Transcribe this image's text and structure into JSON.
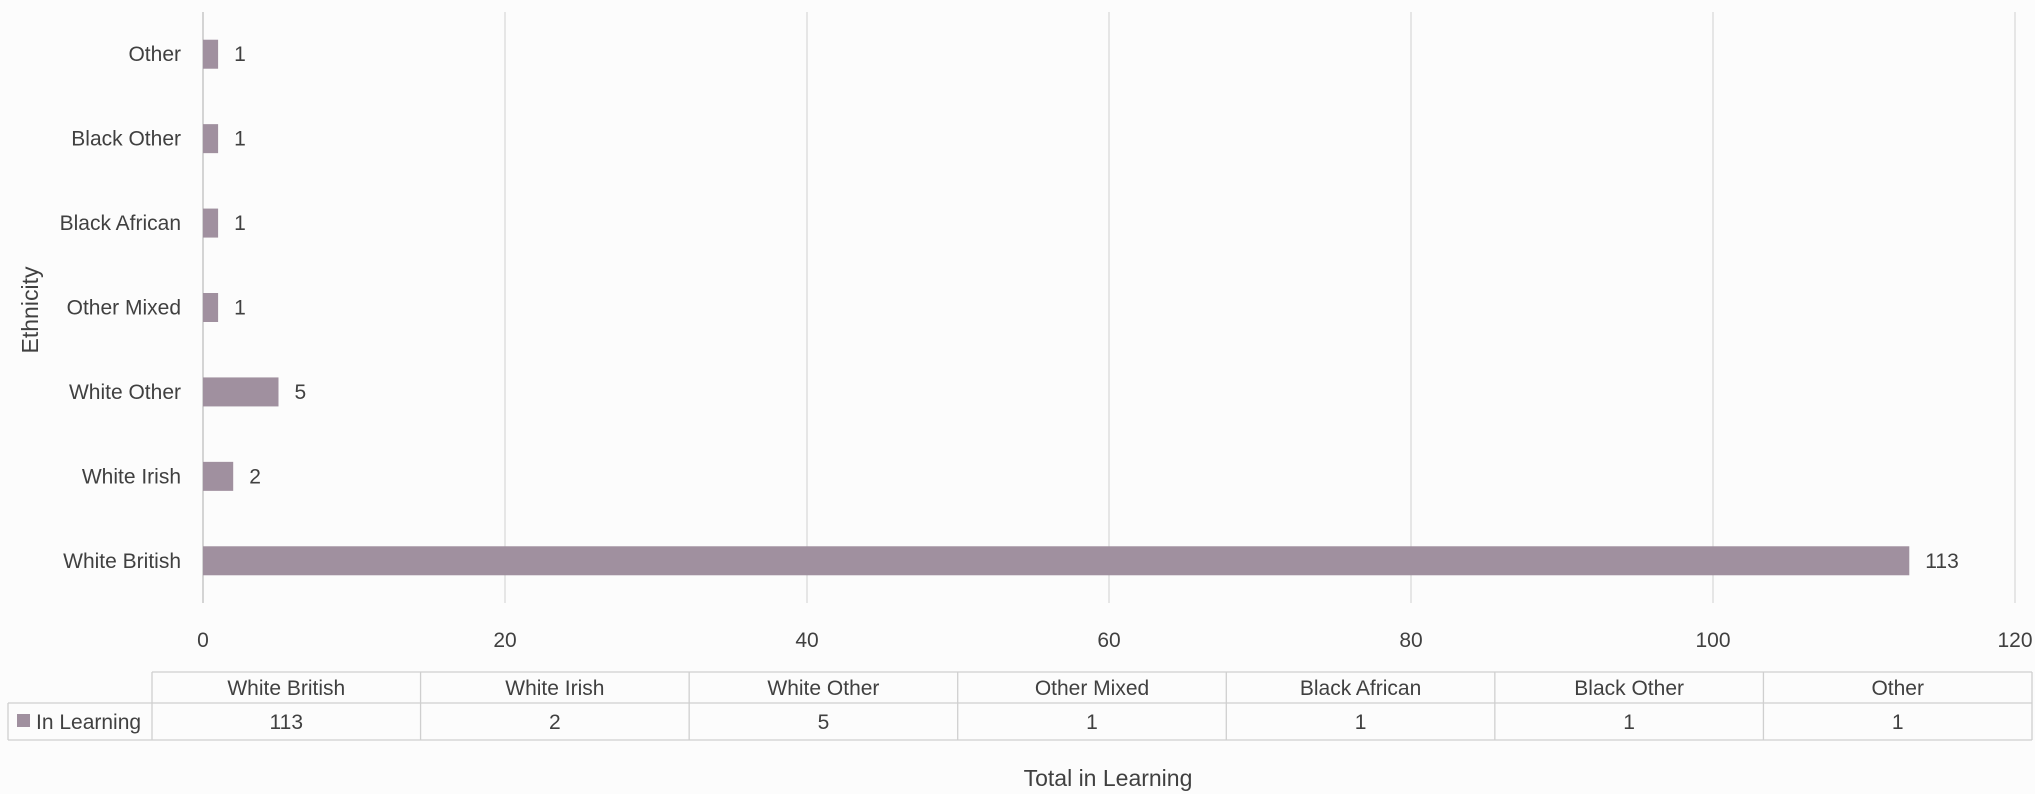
{
  "chart_data": {
    "type": "bar",
    "orientation": "horizontal",
    "categories": [
      "White British",
      "White Irish",
      "White Other",
      "Other Mixed",
      "Black African",
      "Black Other",
      "Other"
    ],
    "series": [
      {
        "name": "In Learning",
        "values": [
          113,
          2,
          5,
          1,
          1,
          1,
          1
        ],
        "color": "#a0909f"
      }
    ],
    "xlabel": "Total in Learning",
    "ylabel": "Ethnicity",
    "xlim": [
      0,
      120
    ],
    "x_ticks": [
      0,
      20,
      40,
      60,
      80,
      100,
      120
    ],
    "grid": "vertical",
    "data_labels": true,
    "data_table": true,
    "legend_placement": "in-data-table"
  }
}
